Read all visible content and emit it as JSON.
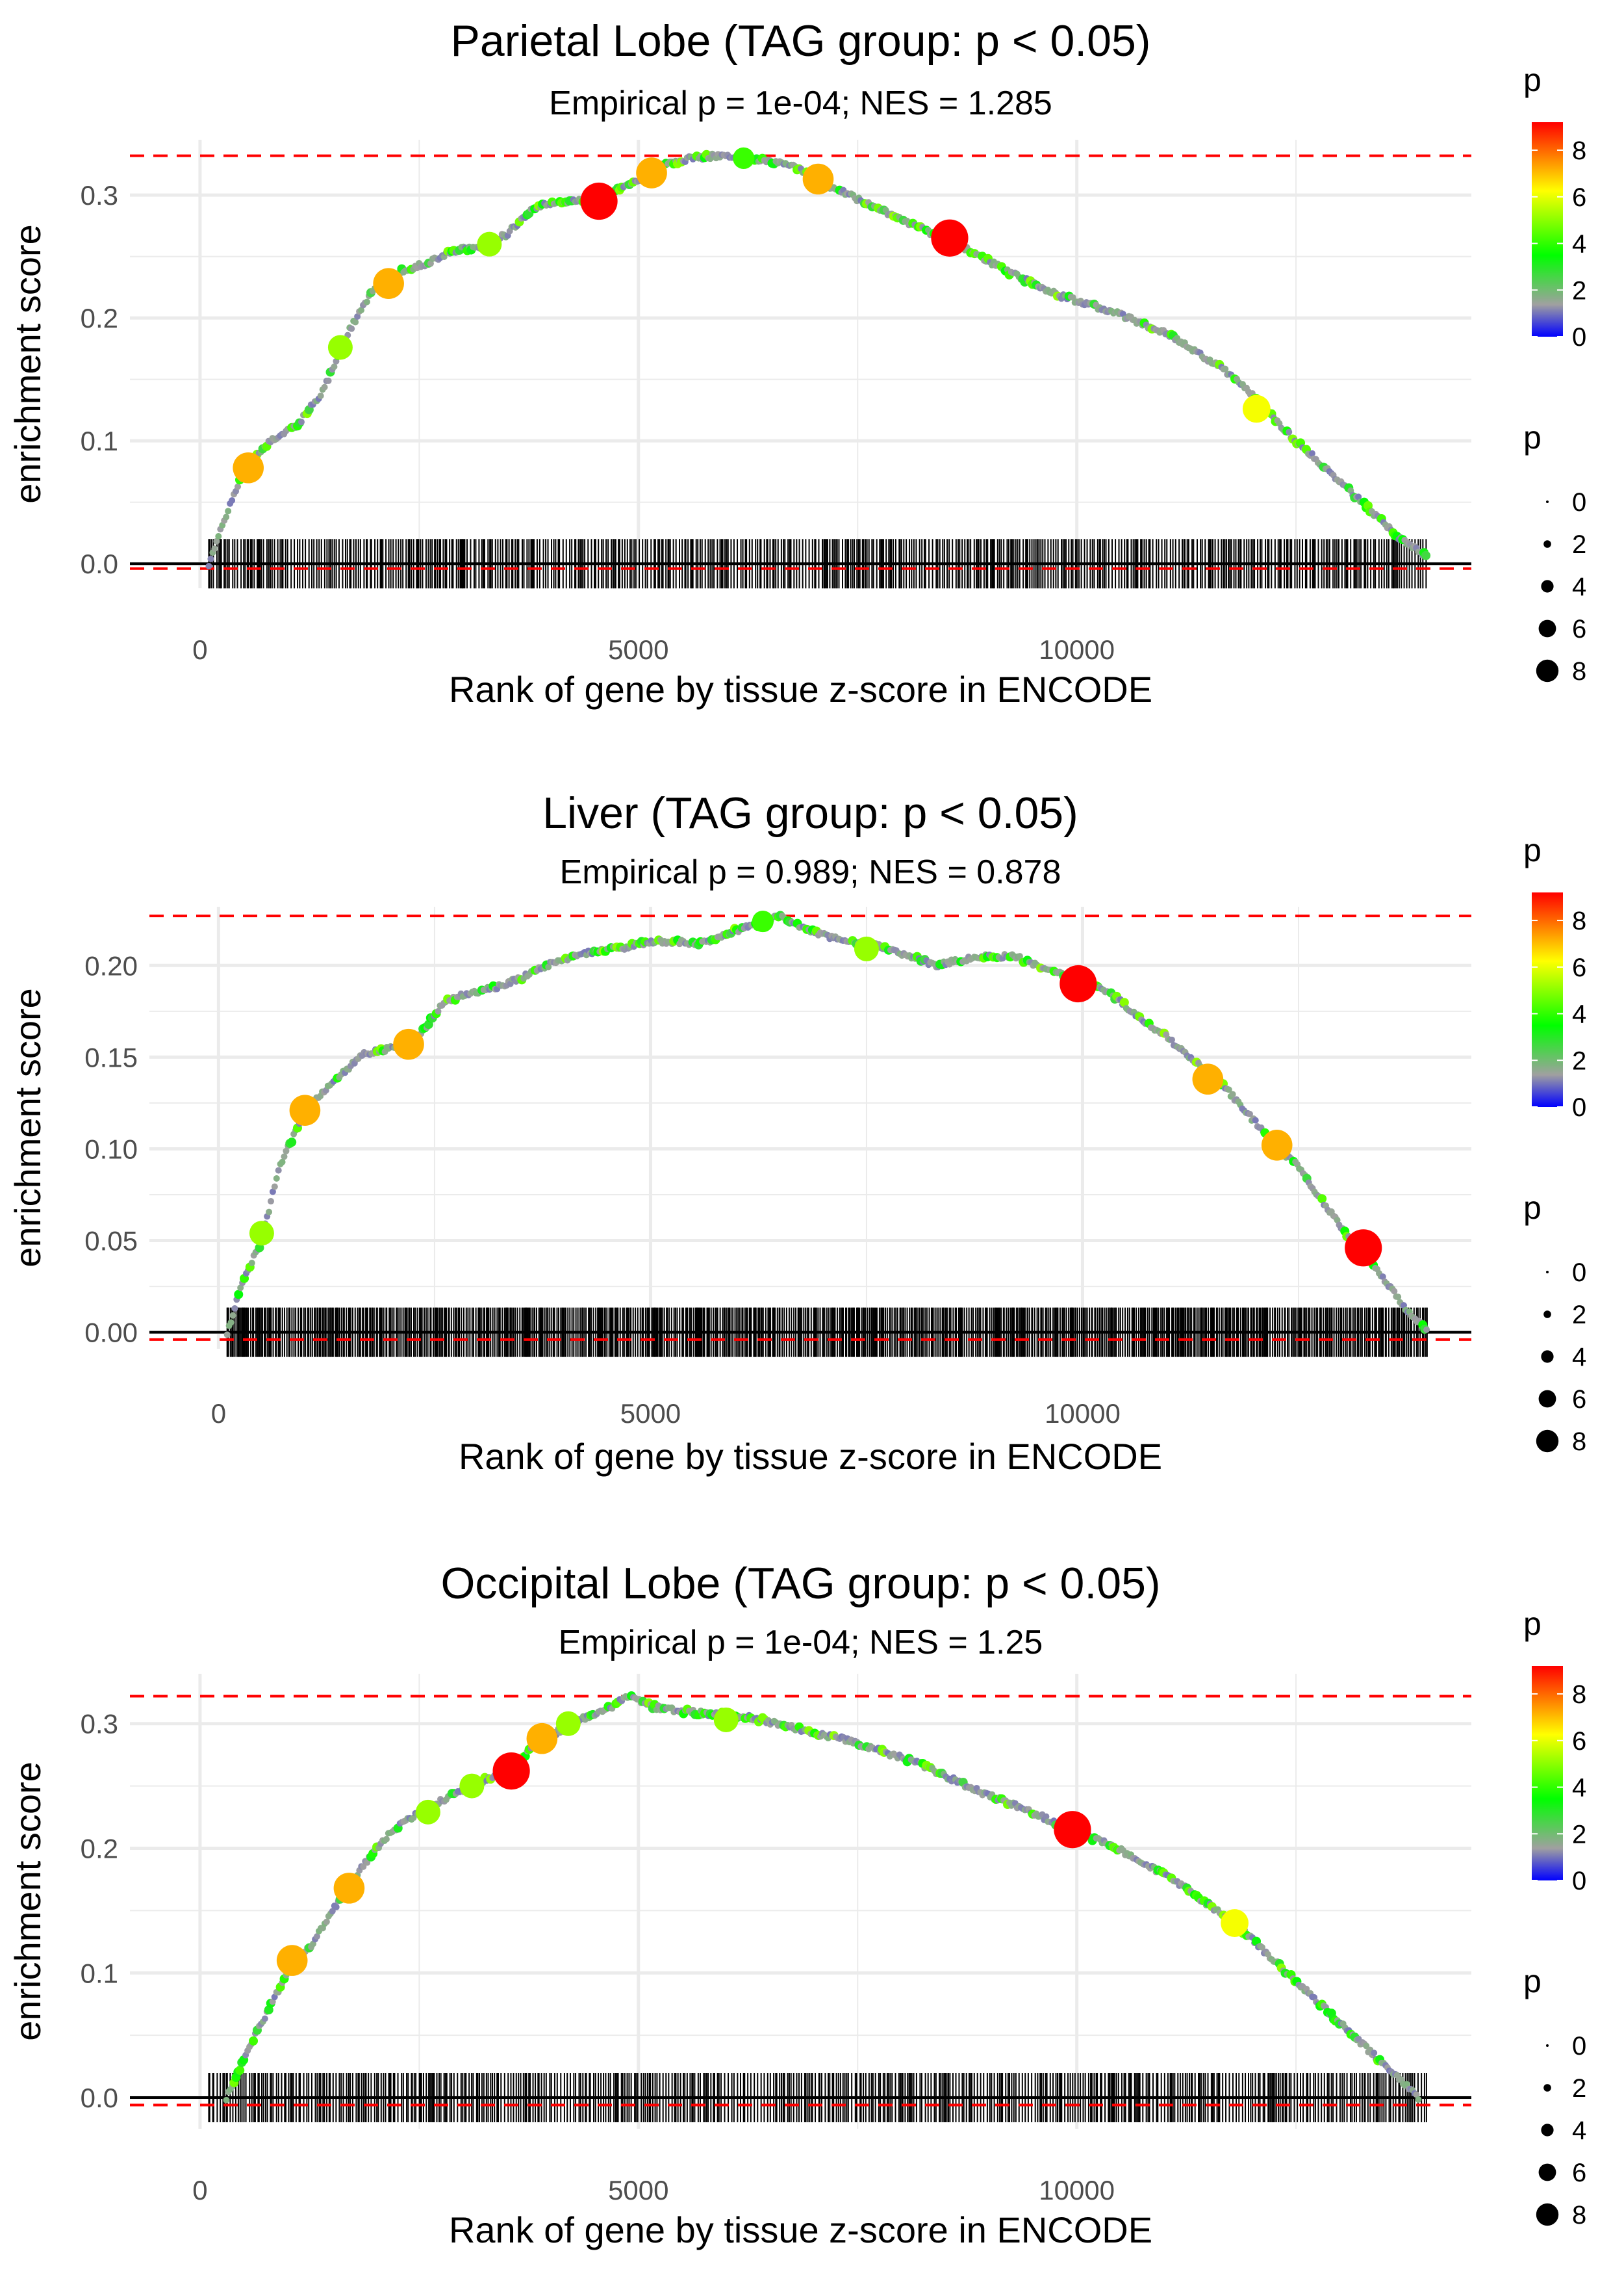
{
  "colors": {
    "grid": "#EBEBEB",
    "curve": "#A9A9A9",
    "refline": "#FF0000",
    "axis_text": "#4D4D4D",
    "text": "#000000",
    "gradient": [
      "#0000FF",
      "#A0A0A0",
      "#00FF00",
      "#FFFF00",
      "#FF0000"
    ]
  },
  "chart_data": [
    {
      "type": "line",
      "title": "Parietal Lobe (TAG group: p < 0.05)",
      "subtitle": "Empirical p = 1e-04; NES = 1.285",
      "xlabel": "Rank of gene by tissue z-score in ENCODE",
      "ylabel": "enrichment score",
      "xlim": [
        -800,
        14500
      ],
      "ylim": [
        -0.02,
        0.345
      ],
      "xticks": [
        0,
        5000,
        10000
      ],
      "xtick_labels": [
        "0",
        "5000",
        "10000"
      ],
      "yticks": [
        0.0,
        0.1,
        0.2,
        0.3
      ],
      "ytick_labels": [
        "0.0",
        "0.1",
        "0.2",
        "0.3"
      ],
      "max_es": 0.332,
      "min_es": -0.004,
      "gene_range": [
        100,
        14000
      ],
      "curve": [
        [
          100,
          0.0
        ],
        [
          300,
          0.04
        ],
        [
          500,
          0.075
        ],
        [
          800,
          0.1
        ],
        [
          1100,
          0.112
        ],
        [
          1400,
          0.14
        ],
        [
          1700,
          0.19
        ],
        [
          2000,
          0.225
        ],
        [
          2300,
          0.238
        ],
        [
          2600,
          0.245
        ],
        [
          2900,
          0.255
        ],
        [
          3200,
          0.258
        ],
        [
          3500,
          0.268
        ],
        [
          3800,
          0.29
        ],
        [
          4100,
          0.295
        ],
        [
          4400,
          0.295
        ],
        [
          4700,
          0.302
        ],
        [
          5000,
          0.312
        ],
        [
          5300,
          0.325
        ],
        [
          5600,
          0.33
        ],
        [
          5900,
          0.332
        ],
        [
          6200,
          0.33
        ],
        [
          6500,
          0.328
        ],
        [
          6800,
          0.322
        ],
        [
          7100,
          0.31
        ],
        [
          7400,
          0.3
        ],
        [
          7700,
          0.29
        ],
        [
          8000,
          0.28
        ],
        [
          8300,
          0.27
        ],
        [
          8600,
          0.262
        ],
        [
          8900,
          0.25
        ],
        [
          9200,
          0.238
        ],
        [
          9500,
          0.228
        ],
        [
          9800,
          0.218
        ],
        [
          10100,
          0.212
        ],
        [
          10400,
          0.205
        ],
        [
          10700,
          0.197
        ],
        [
          11000,
          0.188
        ],
        [
          11300,
          0.175
        ],
        [
          11600,
          0.162
        ],
        [
          11900,
          0.145
        ],
        [
          12200,
          0.122
        ],
        [
          12500,
          0.1
        ],
        [
          12800,
          0.08
        ],
        [
          13100,
          0.06
        ],
        [
          13400,
          0.04
        ],
        [
          13700,
          0.02
        ],
        [
          14000,
          0.005
        ]
      ],
      "highlight_points": [
        [
          550,
          0.078,
          7
        ],
        [
          1600,
          0.176,
          5
        ],
        [
          2150,
          0.228,
          7
        ],
        [
          3300,
          0.26,
          5
        ],
        [
          4550,
          0.295,
          9
        ],
        [
          5150,
          0.318,
          7
        ],
        [
          6200,
          0.33,
          4
        ],
        [
          7050,
          0.313,
          7
        ],
        [
          8550,
          0.265,
          9
        ],
        [
          12050,
          0.126,
          6
        ]
      ],
      "color_legend": {
        "title": "p",
        "ticks": [
          "8",
          "6",
          "4",
          "2",
          "0"
        ]
      },
      "size_legend": {
        "title": "p",
        "labels": [
          "0",
          "2",
          "4",
          "6",
          "8"
        ]
      }
    },
    {
      "type": "line",
      "title": "Liver (TAG group: p < 0.05)",
      "subtitle": "Empirical p = 0.989; NES = 0.878",
      "xlabel": "Rank of gene by tissue z-score in ENCODE",
      "ylabel": "enrichment score",
      "xlim": [
        -800,
        14500
      ],
      "ylim": [
        -0.009,
        0.232
      ],
      "xticks": [
        0,
        5000,
        10000
      ],
      "xtick_labels": [
        "0",
        "5000",
        "10000"
      ],
      "yticks": [
        0.0,
        0.05,
        0.1,
        0.15,
        0.2
      ],
      "ytick_labels": [
        "0.00",
        "0.05",
        "0.10",
        "0.15",
        "0.20"
      ],
      "max_es": 0.227,
      "min_es": -0.004,
      "gene_range": [
        100,
        14000
      ],
      "curve": [
        [
          100,
          0.0
        ],
        [
          300,
          0.03
        ],
        [
          500,
          0.05
        ],
        [
          700,
          0.09
        ],
        [
          900,
          0.11
        ],
        [
          1100,
          0.125
        ],
        [
          1400,
          0.14
        ],
        [
          1700,
          0.152
        ],
        [
          2000,
          0.155
        ],
        [
          2300,
          0.16
        ],
        [
          2600,
          0.18
        ],
        [
          2900,
          0.185
        ],
        [
          3200,
          0.188
        ],
        [
          3500,
          0.193
        ],
        [
          3800,
          0.2
        ],
        [
          4100,
          0.205
        ],
        [
          4400,
          0.208
        ],
        [
          4700,
          0.21
        ],
        [
          5000,
          0.213
        ],
        [
          5300,
          0.213
        ],
        [
          5600,
          0.212
        ],
        [
          5900,
          0.218
        ],
        [
          6200,
          0.222
        ],
        [
          6500,
          0.227
        ],
        [
          6800,
          0.22
        ],
        [
          7100,
          0.215
        ],
        [
          7400,
          0.213
        ],
        [
          7700,
          0.21
        ],
        [
          8000,
          0.205
        ],
        [
          8300,
          0.2
        ],
        [
          8600,
          0.203
        ],
        [
          8900,
          0.205
        ],
        [
          9200,
          0.205
        ],
        [
          9500,
          0.2
        ],
        [
          9800,
          0.195
        ],
        [
          10100,
          0.19
        ],
        [
          10400,
          0.182
        ],
        [
          10700,
          0.17
        ],
        [
          11000,
          0.16
        ],
        [
          11300,
          0.148
        ],
        [
          11600,
          0.136
        ],
        [
          11900,
          0.12
        ],
        [
          12200,
          0.103
        ],
        [
          12500,
          0.09
        ],
        [
          12800,
          0.07
        ],
        [
          13100,
          0.05
        ],
        [
          13400,
          0.035
        ],
        [
          13700,
          0.015
        ],
        [
          14000,
          0.0
        ]
      ],
      "highlight_points": [
        [
          500,
          0.054,
          5
        ],
        [
          1000,
          0.121,
          7
        ],
        [
          2200,
          0.157,
          7
        ],
        [
          6300,
          0.224,
          4
        ],
        [
          7500,
          0.209,
          5
        ],
        [
          9950,
          0.19,
          9
        ],
        [
          11450,
          0.138,
          7
        ],
        [
          12250,
          0.102,
          7
        ],
        [
          13250,
          0.046,
          9
        ]
      ],
      "color_legend": {
        "title": "p",
        "ticks": [
          "8",
          "6",
          "4",
          "2",
          "0"
        ]
      },
      "size_legend": {
        "title": "p",
        "labels": [
          "0",
          "2",
          "4",
          "6",
          "8"
        ]
      }
    },
    {
      "type": "line",
      "title": "Occipital Lobe (TAG group: p < 0.05)",
      "subtitle": "Empirical p = 1e-04; NES = 1.25",
      "xlabel": "Rank of gene by tissue z-score in ENCODE",
      "ylabel": "enrichment score",
      "xlim": [
        -800,
        14500
      ],
      "ylim": [
        -0.025,
        0.34
      ],
      "xticks": [
        0,
        5000,
        10000
      ],
      "xtick_labels": [
        "0",
        "5000",
        "10000"
      ],
      "yticks": [
        0.0,
        0.1,
        0.2,
        0.3
      ],
      "ytick_labels": [
        "0.0",
        "0.1",
        "0.2",
        "0.3"
      ],
      "max_es": 0.322,
      "min_es": -0.006,
      "gene_range": [
        100,
        14000
      ],
      "curve": [
        [
          300,
          0.0
        ],
        [
          500,
          0.03
        ],
        [
          700,
          0.06
        ],
        [
          1000,
          0.1
        ],
        [
          1300,
          0.125
        ],
        [
          1600,
          0.16
        ],
        [
          1900,
          0.19
        ],
        [
          2200,
          0.215
        ],
        [
          2500,
          0.228
        ],
        [
          2800,
          0.24
        ],
        [
          3100,
          0.25
        ],
        [
          3400,
          0.26
        ],
        [
          3700,
          0.275
        ],
        [
          4000,
          0.29
        ],
        [
          4300,
          0.303
        ],
        [
          4600,
          0.31
        ],
        [
          4900,
          0.322
        ],
        [
          5200,
          0.313
        ],
        [
          5500,
          0.31
        ],
        [
          5800,
          0.308
        ],
        [
          6100,
          0.307
        ],
        [
          6400,
          0.303
        ],
        [
          6700,
          0.298
        ],
        [
          7000,
          0.292
        ],
        [
          7300,
          0.288
        ],
        [
          7600,
          0.282
        ],
        [
          7900,
          0.275
        ],
        [
          8200,
          0.268
        ],
        [
          8500,
          0.258
        ],
        [
          8800,
          0.248
        ],
        [
          9100,
          0.24
        ],
        [
          9400,
          0.232
        ],
        [
          9700,
          0.222
        ],
        [
          10000,
          0.212
        ],
        [
          10300,
          0.205
        ],
        [
          10600,
          0.195
        ],
        [
          10900,
          0.183
        ],
        [
          11200,
          0.17
        ],
        [
          11500,
          0.155
        ],
        [
          11800,
          0.14
        ],
        [
          12100,
          0.12
        ],
        [
          12400,
          0.1
        ],
        [
          12700,
          0.08
        ],
        [
          13000,
          0.06
        ],
        [
          13300,
          0.04
        ],
        [
          13600,
          0.02
        ],
        [
          13900,
          0.0
        ]
      ],
      "highlight_points": [
        [
          1050,
          0.11,
          7
        ],
        [
          1700,
          0.168,
          7
        ],
        [
          2600,
          0.229,
          5
        ],
        [
          3100,
          0.25,
          5
        ],
        [
          3550,
          0.262,
          9
        ],
        [
          3900,
          0.288,
          7
        ],
        [
          4200,
          0.3,
          5
        ],
        [
          6000,
          0.303,
          5
        ],
        [
          9950,
          0.215,
          9
        ],
        [
          11800,
          0.14,
          6
        ]
      ],
      "color_legend": {
        "title": "p",
        "ticks": [
          "8",
          "6",
          "4",
          "2",
          "0"
        ]
      },
      "size_legend": {
        "title": "p",
        "labels": [
          "0",
          "2",
          "4",
          "6",
          "8"
        ]
      }
    }
  ]
}
